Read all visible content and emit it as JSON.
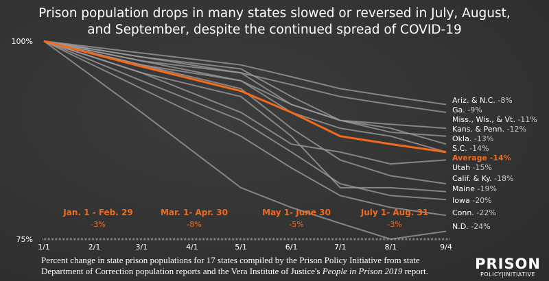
{
  "title_line1": "Prison population drops in many states slowed or reversed in July, August,",
  "title_line2": "and September, despite the continued spread of COVID-19",
  "note_line1": "Percent change in state prison populations for 17 states compiled by the Prison Policy Initiative from state",
  "note_line2_pre": "Department of Correction population reports and the Vera Institute of Justice's ",
  "note_line2_em": "People in Prison 2019",
  "note_line2_post": " report.",
  "logo": {
    "line1": "PRISON",
    "line2": "POLICY | INITIATIVE"
  },
  "colors": {
    "background": "#333333",
    "state_lines": "#9a9a9a",
    "average": "#f26a1b",
    "text": "#ffffff"
  },
  "chart_data": {
    "type": "line",
    "title": "Prison population drops in many states slowed or reversed in July, August, and September, despite the continued spread of COVID-19",
    "x_ticks": [
      "1/1",
      "2/1",
      "3/1",
      "4/1",
      "5/1",
      "6/1",
      "7/1",
      "8/1",
      "9/4"
    ],
    "y_ticks": [
      "100%",
      "75%"
    ],
    "ylim": [
      75,
      100
    ],
    "x": [
      "1/1",
      "3/1",
      "5/1",
      "6/1",
      "7/1",
      "8/1",
      "9/4"
    ],
    "series": [
      {
        "name": "Ariz. & N.C.",
        "label": "-8%",
        "values": [
          100,
          98.5,
          97,
          95.5,
          94,
          93,
          92
        ]
      },
      {
        "name": "Ga.",
        "label": "-9%",
        "values": [
          100,
          98,
          96,
          94.5,
          93,
          92,
          91
        ]
      },
      {
        "name": "Miss., Wis., & Vt.",
        "label": "-11%",
        "values": [
          100,
          97.5,
          95,
          92,
          90,
          89.5,
          89
        ]
      },
      {
        "name": "Kans. & Penn.",
        "label": "-12%",
        "values": [
          100,
          98,
          96.5,
          93,
          90,
          88.5,
          88
        ]
      },
      {
        "name": "Okla.",
        "label": "-13%",
        "values": [
          100,
          97.5,
          96,
          92,
          90,
          89,
          87
        ]
      },
      {
        "name": "S.C.",
        "label": "-14%",
        "values": [
          100,
          97,
          95,
          91,
          89,
          88,
          86
        ]
      },
      {
        "name": "Utah",
        "label": "-15%",
        "values": [
          100,
          96,
          91,
          87,
          86,
          84.5,
          85
        ]
      },
      {
        "name": "Calif. & Ky.",
        "label": "-18%",
        "values": [
          100,
          97,
          94,
          89,
          85,
          83,
          82
        ]
      },
      {
        "name": "Maine",
        "label": "-19%",
        "values": [
          100,
          96,
          93,
          88,
          81.5,
          81.5,
          81
        ]
      },
      {
        "name": "Iowa",
        "label": "-20%",
        "values": [
          100,
          95,
          90,
          86,
          82,
          80.5,
          80
        ]
      },
      {
        "name": "Conn.",
        "label": "-22%",
        "values": [
          100,
          94,
          88,
          84,
          80.5,
          79,
          78
        ]
      },
      {
        "name": "N.D.",
        "label": "-24%",
        "values": [
          100,
          91,
          81.5,
          79,
          77,
          75,
          76
        ]
      },
      {
        "name": "Average",
        "label": "-14%",
        "values": [
          100,
          96.8,
          93.7,
          91,
          88,
          87,
          86
        ],
        "highlight": true
      }
    ],
    "annotations": [
      {
        "period": "Jan. 1 - Feb. 29",
        "change": "-3%"
      },
      {
        "period": "Mar. 1- Apr. 30",
        "change": "-8%"
      },
      {
        "period": "May 1- June 30",
        "change": "-5%"
      },
      {
        "period": "July 1- Aug. 31",
        "change": "-3%"
      }
    ]
  }
}
